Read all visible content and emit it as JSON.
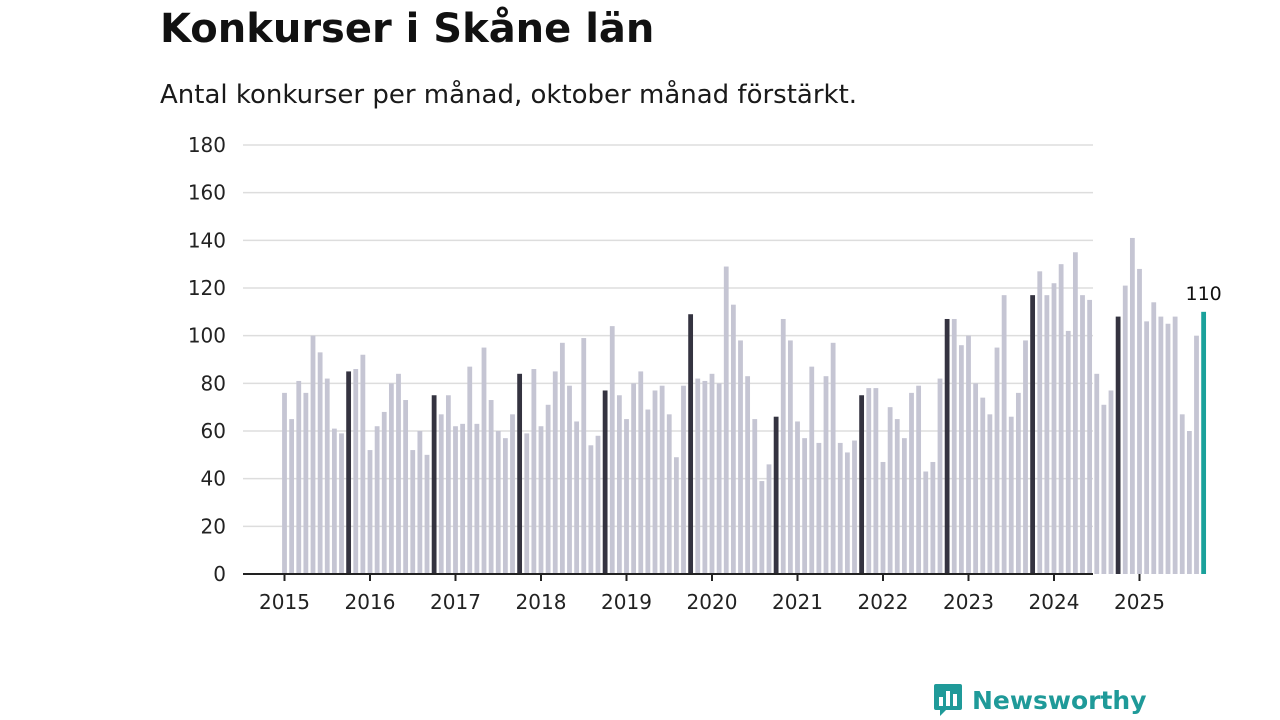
{
  "header": {
    "title": "Konkurser i Skåne län",
    "subtitle": "Antal konkurser per månad, oktober månad förstärkt."
  },
  "brand": {
    "name": "Newsworthy",
    "color": "#1f9a99"
  },
  "colors": {
    "bar": "#c5c5d3",
    "highlight": "#343340",
    "latest": "#1aa19b",
    "grid": "#dddddd",
    "axis": "#222222"
  },
  "chart_data": {
    "type": "bar",
    "title": "Konkurser i Skåne län",
    "subtitle": "Antal konkurser per månad, oktober månad förstärkt.",
    "xlabel": "",
    "ylabel": "",
    "ylim": [
      0,
      180
    ],
    "yticks": [
      0,
      20,
      40,
      60,
      80,
      100,
      120,
      140,
      160,
      180
    ],
    "xticks": [
      "2015",
      "2016",
      "2017",
      "2018",
      "2019",
      "2020",
      "2021",
      "2022",
      "2023",
      "2024",
      "2025"
    ],
    "grid": true,
    "start": "2015-01",
    "highlight_month": "oktober",
    "last_value_label": "110",
    "values": [
      76,
      65,
      81,
      76,
      100,
      93,
      82,
      61,
      59,
      85,
      86,
      92,
      52,
      62,
      68,
      80,
      84,
      73,
      52,
      60,
      50,
      75,
      67,
      75,
      62,
      63,
      87,
      63,
      95,
      73,
      60,
      57,
      67,
      84,
      59,
      86,
      62,
      71,
      85,
      97,
      79,
      64,
      99,
      54,
      58,
      77,
      104,
      75,
      65,
      80,
      85,
      69,
      77,
      79,
      67,
      49,
      79,
      109,
      82,
      81,
      84,
      80,
      129,
      113,
      98,
      83,
      65,
      39,
      46,
      66,
      107,
      98,
      64,
      57,
      87,
      55,
      83,
      97,
      55,
      51,
      56,
      75,
      78,
      78,
      47,
      70,
      65,
      57,
      76,
      79,
      43,
      47,
      82,
      107,
      107,
      96,
      100,
      80,
      74,
      67,
      95,
      117,
      66,
      76,
      98,
      117,
      127,
      117,
      122,
      130,
      102,
      135,
      117,
      115,
      84,
      71,
      77,
      108,
      121,
      141,
      128,
      106,
      114,
      108,
      105,
      108,
      67,
      60,
      100,
      110
    ]
  }
}
